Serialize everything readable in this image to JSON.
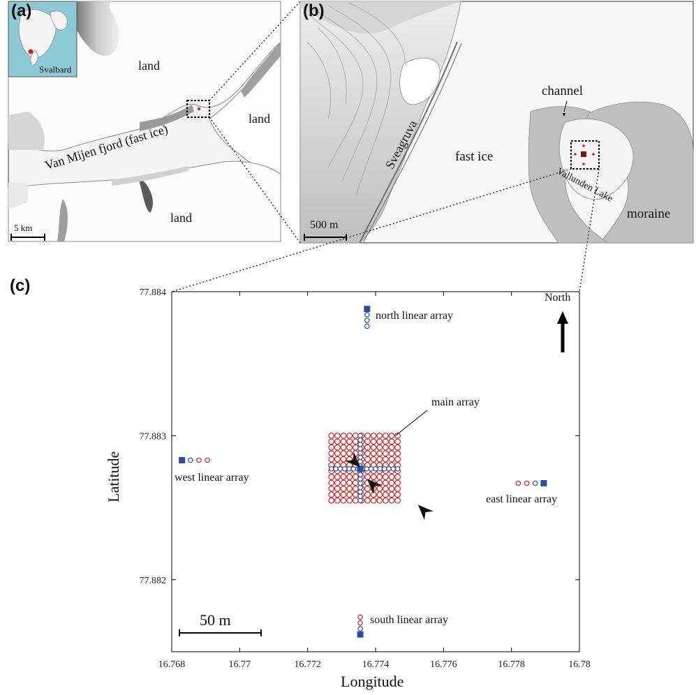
{
  "panels": {
    "a": {
      "label": "(a)",
      "inset_label": "Svalbard",
      "place_labels": [
        "land",
        "land",
        "land",
        "Van Mijen fjord (fast ice)"
      ],
      "scale_label": "5 km"
    },
    "b": {
      "label": "(b)",
      "place_labels": {
        "channel": "channel",
        "sveagruva": "Sveagruva",
        "fast_ice": "fast ice",
        "lake": "Vallunden Lake",
        "moraine": "moraine"
      },
      "scale_label": "500 m"
    },
    "c": {
      "label": "(c)",
      "north_label": "North",
      "scale_label": "50 m",
      "annotations": {
        "main": "main array",
        "north": "north linear array",
        "south": "south linear array",
        "west": "west linear array",
        "east": "east linear array"
      }
    }
  },
  "colors": {
    "sensor_red": "#d42020",
    "sensor_blue": "#2a4fa0",
    "fast_ice": "#ffffff",
    "land_light": "#dcdcdc",
    "inset_sea": "#8ec9d6",
    "lake": "#bdbdbd"
  },
  "chart_data": {
    "type": "scatter",
    "xlabel": "Longitude",
    "ylabel": "Latitude",
    "xlim": [
      16.768,
      16.78
    ],
    "ylim": [
      77.8815,
      77.884
    ],
    "xticks": [
      16.768,
      16.77,
      16.772,
      16.774,
      16.776,
      16.778,
      16.78
    ],
    "yticks": [
      77.882,
      77.883,
      77.884
    ],
    "xtick_labels": [
      "16.768",
      "16.77",
      "16.772",
      "16.774",
      "16.776",
      "16.778",
      "16.78"
    ],
    "ytick_labels": [
      "77.882",
      "77.883",
      "77.884"
    ],
    "series": [
      {
        "kind": "main_grid",
        "marker": "open-circle-red",
        "lon_range": [
          16.7727,
          16.77465
        ],
        "lat_range": [
          77.88255,
          77.883
        ],
        "nx": 12,
        "ny": 12
      },
      {
        "kind": "main_cross",
        "marker": "open-circle-blue",
        "center": [
          16.77355,
          77.88277
        ],
        "lon_range": [
          16.7727,
          16.77465
        ],
        "lat_range": [
          77.88255,
          77.883
        ],
        "n": 16
      },
      {
        "kind": "linear",
        "name": "north linear array",
        "square": [
          16.77375,
          77.88388
        ],
        "circles": [
          [
            16.77375,
            77.88384
          ],
          [
            16.77375,
            77.8838
          ],
          [
            16.77375,
            77.88376
          ]
        ],
        "circle_colors": [
          "blue",
          "blue",
          "blue"
        ]
      },
      {
        "kind": "linear",
        "name": "south linear array",
        "square": [
          16.77355,
          77.88162
        ],
        "circles": [
          [
            16.77355,
            77.88166
          ],
          [
            16.77355,
            77.8817
          ],
          [
            16.77355,
            77.88174
          ]
        ],
        "circle_colors": [
          "blue",
          "red",
          "red"
        ]
      },
      {
        "kind": "linear",
        "name": "west linear array",
        "square": [
          16.7683,
          77.88283
        ],
        "circles": [
          [
            16.76855,
            77.88283
          ],
          [
            16.7688,
            77.88283
          ],
          [
            16.76905,
            77.88283
          ]
        ],
        "circle_colors": [
          "blue",
          "red",
          "red"
        ]
      },
      {
        "kind": "linear",
        "name": "east linear array",
        "square": [
          16.77895,
          77.88267
        ],
        "circles": [
          [
            16.7787,
            77.88267
          ],
          [
            16.77845,
            77.88267
          ],
          [
            16.7782,
            77.88267
          ]
        ],
        "circle_colors": [
          "blue",
          "red",
          "red"
        ]
      }
    ],
    "arrows": [
      {
        "tip": [
          16.77355,
          77.88278
        ],
        "dir_deg": 45
      },
      {
        "tip": [
          16.77375,
          77.8827
        ],
        "dir_deg": 225
      },
      {
        "tip": [
          16.77525,
          77.88252
        ],
        "dir_deg": 225
      }
    ]
  }
}
